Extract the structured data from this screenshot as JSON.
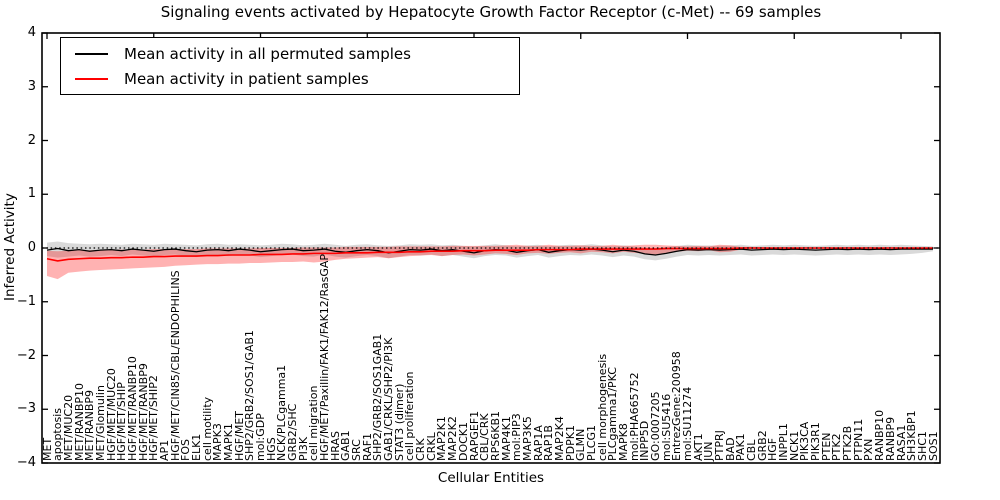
{
  "chart_data": {
    "type": "line",
    "title": "Signaling events activated by Hepatocyte Growth Factor Receptor (c-Met) -- 69 samples",
    "xlabel": "Cellular Entities",
    "ylabel": "Inferred Activity",
    "ylim": [
      -4,
      4
    ],
    "grid": false,
    "legend_position": "upper left",
    "ytick_labels": [
      "4",
      "3",
      "2",
      "1",
      "0",
      "−1",
      "−2",
      "−3",
      "−4"
    ],
    "reference_line": {
      "y": 0,
      "style": "dotted",
      "color": "#000000"
    },
    "categories": [
      "MET",
      "apoptosis",
      "MET/MUC20",
      "MET/RANBP10",
      "MET/RANBP9",
      "MET/Glomulin",
      "HGF/MET/MUC20",
      "HGF/MET/SHIP",
      "HGF/MET/RANBP10",
      "HGF/MET/RANBP9",
      "HGF/MET/SHIP2",
      "AP1",
      "HGF/MET/CIN85/CBL/ENDOPHILINS",
      "FOS",
      "ELK1",
      "cell motility",
      "MAPK3",
      "MAPK1",
      "HGF/MET",
      "SHP2/GRB2/SOS1/GAB1",
      "mol:GDP",
      "HGS",
      "NCK/PLCgamma1",
      "GRB2/SHC",
      "PI3K",
      "cell migration",
      "HGF/MET/Paxillin/FAK1/FAK12/RasGAP",
      "HRAS",
      "GAB1",
      "SRC",
      "RAF1",
      "SHP2/GRB2/SOS1GAB1",
      "GAB1/CRKL/SHP2/PI3K",
      "STAT3 (dimer)",
      "cell proliferation",
      "CRK",
      "CRKL",
      "MAP2K1",
      "MAP2K2",
      "DOCK1",
      "RAPGEF1",
      "CBL/CRK",
      "RPS6KB1",
      "MAP4K1",
      "mol:PIP3",
      "MAP3K5",
      "RAP1A",
      "RAP1B",
      "MAP2K4",
      "PDPK1",
      "GLMN",
      "PLCG1",
      "cell morphogenesis",
      "PLCgamma1/PKC",
      "MAPK8",
      "mol:PHA665752",
      "INPP5D",
      "GO:0007205",
      "mol:SU5416",
      "EntrezGene:200958",
      "mol:SU11274",
      "AKT1",
      "JUN",
      "PTPRJ",
      "BAD",
      "PAK1",
      "CBL",
      "GRB2",
      "HGF",
      "INPPL1",
      "NCK1",
      "PIK3CA",
      "PIK3R1",
      "PTEN",
      "PTK2",
      "PTK2B",
      "PTPN11",
      "PXN",
      "RANBP10",
      "RANBP9",
      "RASA1",
      "SH3KBP1",
      "SHC1",
      "SOS1"
    ],
    "series": [
      {
        "name": "Mean activity in all permuted samples",
        "color": "#000000",
        "values": [
          -0.04,
          -0.01,
          -0.05,
          -0.03,
          -0.06,
          -0.04,
          -0.03,
          -0.05,
          -0.02,
          -0.04,
          -0.06,
          -0.03,
          -0.02,
          -0.05,
          -0.07,
          -0.04,
          -0.03,
          -0.05,
          -0.02,
          -0.04,
          -0.07,
          -0.05,
          -0.03,
          -0.02,
          -0.05,
          -0.04,
          -0.02,
          -0.06,
          -0.08,
          -0.05,
          -0.03,
          -0.05,
          -0.09,
          -0.06,
          -0.03,
          -0.04,
          -0.02,
          -0.05,
          -0.03,
          -0.06,
          -0.09,
          -0.05,
          -0.03,
          -0.04,
          -0.08,
          -0.05,
          -0.03,
          -0.08,
          -0.05,
          -0.03,
          -0.04,
          -0.02,
          -0.04,
          -0.07,
          -0.04,
          -0.06,
          -0.11,
          -0.13,
          -0.1,
          -0.06,
          -0.03,
          -0.04,
          -0.03,
          -0.04,
          -0.03,
          -0.02,
          -0.04,
          -0.03,
          -0.02,
          -0.03,
          -0.02,
          -0.03,
          -0.04,
          -0.03,
          -0.02,
          -0.03,
          -0.02,
          -0.03,
          -0.02,
          -0.03,
          -0.02,
          -0.02,
          -0.02,
          -0.02
        ],
        "band": {
          "color": "rgba(0,0,0,0.15)",
          "upper": [
            0.1,
            0.12,
            0.09,
            0.08,
            0.07,
            0.08,
            0.07,
            0.06,
            0.08,
            0.07,
            0.06,
            0.08,
            0.07,
            0.06,
            0.05,
            0.07,
            0.08,
            0.06,
            0.07,
            0.06,
            0.05,
            0.06,
            0.08,
            0.07,
            0.05,
            0.06,
            0.08,
            0.06,
            0.04,
            0.06,
            0.07,
            0.05,
            0.04,
            0.05,
            0.07,
            0.06,
            0.07,
            0.05,
            0.06,
            0.04,
            0.03,
            0.05,
            0.07,
            0.05,
            0.03,
            0.05,
            0.06,
            0.03,
            0.05,
            0.06,
            0.05,
            0.07,
            0.05,
            0.03,
            0.05,
            0.03,
            0.01,
            0.0,
            0.02,
            0.04,
            0.06,
            0.05,
            0.05,
            0.04,
            0.05,
            0.06,
            0.04,
            0.05,
            0.06,
            0.05,
            0.06,
            0.05,
            0.04,
            0.05,
            0.06,
            0.05,
            0.06,
            0.05,
            0.06,
            0.05,
            0.06,
            0.05,
            0.04,
            0.03
          ],
          "lower": [
            -0.15,
            -0.18,
            -0.16,
            -0.14,
            -0.16,
            -0.15,
            -0.13,
            -0.15,
            -0.12,
            -0.14,
            -0.16,
            -0.13,
            -0.12,
            -0.15,
            -0.17,
            -0.14,
            -0.13,
            -0.15,
            -0.12,
            -0.14,
            -0.17,
            -0.15,
            -0.13,
            -0.12,
            -0.15,
            -0.16,
            -0.12,
            -0.16,
            -0.18,
            -0.15,
            -0.13,
            -0.15,
            -0.19,
            -0.16,
            -0.13,
            -0.14,
            -0.12,
            -0.15,
            -0.13,
            -0.16,
            -0.19,
            -0.15,
            -0.13,
            -0.14,
            -0.18,
            -0.15,
            -0.13,
            -0.18,
            -0.15,
            -0.13,
            -0.14,
            -0.12,
            -0.14,
            -0.17,
            -0.14,
            -0.16,
            -0.21,
            -0.23,
            -0.2,
            -0.16,
            -0.13,
            -0.14,
            -0.13,
            -0.14,
            -0.13,
            -0.12,
            -0.14,
            -0.13,
            -0.12,
            -0.13,
            -0.12,
            -0.13,
            -0.14,
            -0.13,
            -0.12,
            -0.13,
            -0.12,
            -0.13,
            -0.12,
            -0.13,
            -0.12,
            -0.11,
            -0.09,
            -0.06
          ]
        }
      },
      {
        "name": "Mean activity in patient samples",
        "color": "#ff0000",
        "values": [
          -0.2,
          -0.24,
          -0.21,
          -0.2,
          -0.19,
          -0.19,
          -0.18,
          -0.18,
          -0.17,
          -0.17,
          -0.16,
          -0.16,
          -0.15,
          -0.15,
          -0.15,
          -0.14,
          -0.14,
          -0.13,
          -0.13,
          -0.13,
          -0.12,
          -0.12,
          -0.12,
          -0.11,
          -0.11,
          -0.1,
          -0.1,
          -0.1,
          -0.09,
          -0.09,
          -0.09,
          -0.08,
          -0.08,
          -0.08,
          -0.07,
          -0.07,
          -0.06,
          -0.06,
          -0.06,
          -0.05,
          -0.05,
          -0.05,
          -0.04,
          -0.04,
          -0.04,
          -0.04,
          -0.03,
          -0.03,
          -0.03,
          -0.03,
          -0.02,
          -0.02,
          -0.02,
          -0.02,
          -0.02,
          -0.02,
          -0.02,
          -0.02,
          -0.01,
          -0.01,
          -0.01,
          -0.01,
          -0.01,
          -0.01,
          -0.01,
          0,
          0,
          0,
          0,
          0,
          0,
          0,
          0,
          0,
          0,
          0,
          0,
          0,
          0,
          0,
          0,
          0,
          0,
          0
        ],
        "band": {
          "color": "rgba(255,0,0,0.30)",
          "upper": [
            -0.05,
            -0.06,
            -0.05,
            -0.04,
            -0.04,
            -0.04,
            -0.03,
            -0.03,
            -0.03,
            -0.03,
            -0.02,
            -0.02,
            -0.02,
            -0.02,
            -0.02,
            -0.01,
            -0.01,
            -0.01,
            -0.01,
            -0.01,
            0.0,
            0.0,
            0.0,
            0.0,
            0.01,
            0.01,
            0.01,
            0.01,
            0.02,
            0.02,
            0.02,
            0.02,
            0.02,
            0.03,
            0.03,
            0.03,
            0.03,
            0.03,
            0.04,
            0.04,
            0.04,
            0.04,
            0.04,
            0.05,
            0.06,
            0.04,
            0.04,
            0.06,
            0.04,
            0.04,
            0.05,
            0.04,
            0.04,
            0.06,
            0.04,
            0.05,
            0.06,
            0.06,
            0.05,
            0.04,
            0.03,
            0.04,
            0.03,
            0.06,
            0.05,
            0.02,
            0.02,
            0.01,
            0.01,
            0.01,
            0.01,
            0.01,
            0.01,
            0.01,
            0.01,
            0.01,
            0.01,
            0.01,
            0.01,
            0.01,
            0.01,
            0.01,
            0.01,
            0.01
          ],
          "lower": [
            -0.52,
            -0.58,
            -0.46,
            -0.44,
            -0.42,
            -0.41,
            -0.4,
            -0.39,
            -0.38,
            -0.37,
            -0.36,
            -0.35,
            -0.33,
            -0.32,
            -0.31,
            -0.3,
            -0.3,
            -0.29,
            -0.29,
            -0.28,
            -0.28,
            -0.27,
            -0.26,
            -0.26,
            -0.25,
            -0.27,
            -0.25,
            -0.22,
            -0.2,
            -0.19,
            -0.18,
            -0.17,
            -0.19,
            -0.17,
            -0.15,
            -0.14,
            -0.13,
            -0.15,
            -0.13,
            -0.12,
            -0.14,
            -0.12,
            -0.1,
            -0.11,
            -0.13,
            -0.1,
            -0.09,
            -0.11,
            -0.09,
            -0.08,
            -0.1,
            -0.07,
            -0.08,
            -0.1,
            -0.07,
            -0.09,
            -0.11,
            -0.12,
            -0.09,
            -0.07,
            -0.05,
            -0.06,
            -0.04,
            -0.08,
            -0.07,
            -0.03,
            -0.02,
            -0.02,
            -0.02,
            -0.02,
            -0.02,
            -0.01,
            -0.02,
            -0.01,
            -0.01,
            -0.01,
            -0.01,
            -0.01,
            -0.01,
            -0.01,
            -0.01,
            -0.01,
            -0.01,
            -0.01
          ]
        }
      }
    ]
  }
}
